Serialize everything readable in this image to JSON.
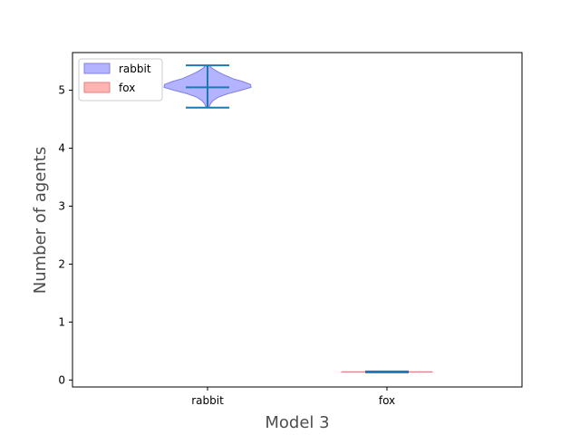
{
  "chart_data": {
    "type": "violin",
    "categories": [
      "rabbit",
      "fox"
    ],
    "xlabel": "Model 3",
    "ylabel": "Number of agents",
    "ylim": [
      -0.12,
      5.65
    ],
    "yticks": [
      0,
      1,
      2,
      3,
      4,
      5
    ],
    "legend": {
      "placement": "upper-left",
      "entries": [
        "rabbit",
        "fox"
      ]
    },
    "grid": false,
    "series": [
      {
        "name": "rabbit",
        "fill_color": "#b3b3ff",
        "edge_color": "#8080e0",
        "min": 4.7,
        "max": 5.43,
        "mean": 5.05,
        "density": [
          [
            4.7,
            0.03
          ],
          [
            4.76,
            0.06
          ],
          [
            4.82,
            0.12
          ],
          [
            4.88,
            0.24
          ],
          [
            4.94,
            0.45
          ],
          [
            5.0,
            0.74
          ],
          [
            5.05,
            0.96
          ],
          [
            5.1,
            0.95
          ],
          [
            5.15,
            0.78
          ],
          [
            5.2,
            0.56
          ],
          [
            5.26,
            0.38
          ],
          [
            5.32,
            0.22
          ],
          [
            5.38,
            0.1
          ],
          [
            5.43,
            0.04
          ]
        ]
      },
      {
        "name": "fox",
        "fill_color": "#ffb3b3",
        "edge_color": "#e08080",
        "min": 0.14,
        "max": 0.14,
        "mean": 0.14,
        "density": [
          [
            0.138,
            1.0
          ],
          [
            0.142,
            1.0
          ]
        ]
      }
    ],
    "stats_color": "#1f77b4"
  }
}
